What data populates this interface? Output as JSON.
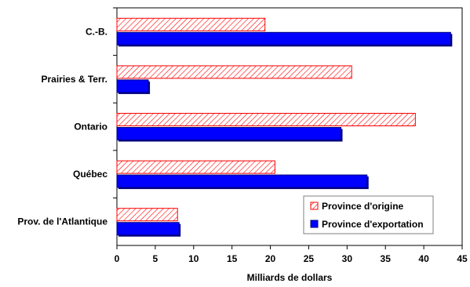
{
  "chart_data": {
    "type": "bar",
    "orientation": "horizontal",
    "categories": [
      "C.-B.",
      "Prairies & Terr.",
      "Ontario",
      "Québec",
      "Prov. de l'Atlantique"
    ],
    "series": [
      {
        "name": "Province d'origine",
        "values": [
          19.3,
          30.6,
          38.9,
          20.6,
          7.9
        ],
        "color": "#ff0000",
        "pattern": "diagonal-hatch"
      },
      {
        "name": "Province d'exportation",
        "values": [
          43.5,
          4.1,
          29.2,
          32.6,
          8.1
        ],
        "color": "#0000ff",
        "pattern": "solid"
      }
    ],
    "xlabel": "Milliards de dollars",
    "ylabel": "",
    "xlim": [
      0,
      45
    ],
    "xticks": [
      0,
      5,
      10,
      15,
      20,
      25,
      30,
      35,
      40,
      45
    ],
    "grid": false,
    "legend_position": "bottom-right"
  }
}
